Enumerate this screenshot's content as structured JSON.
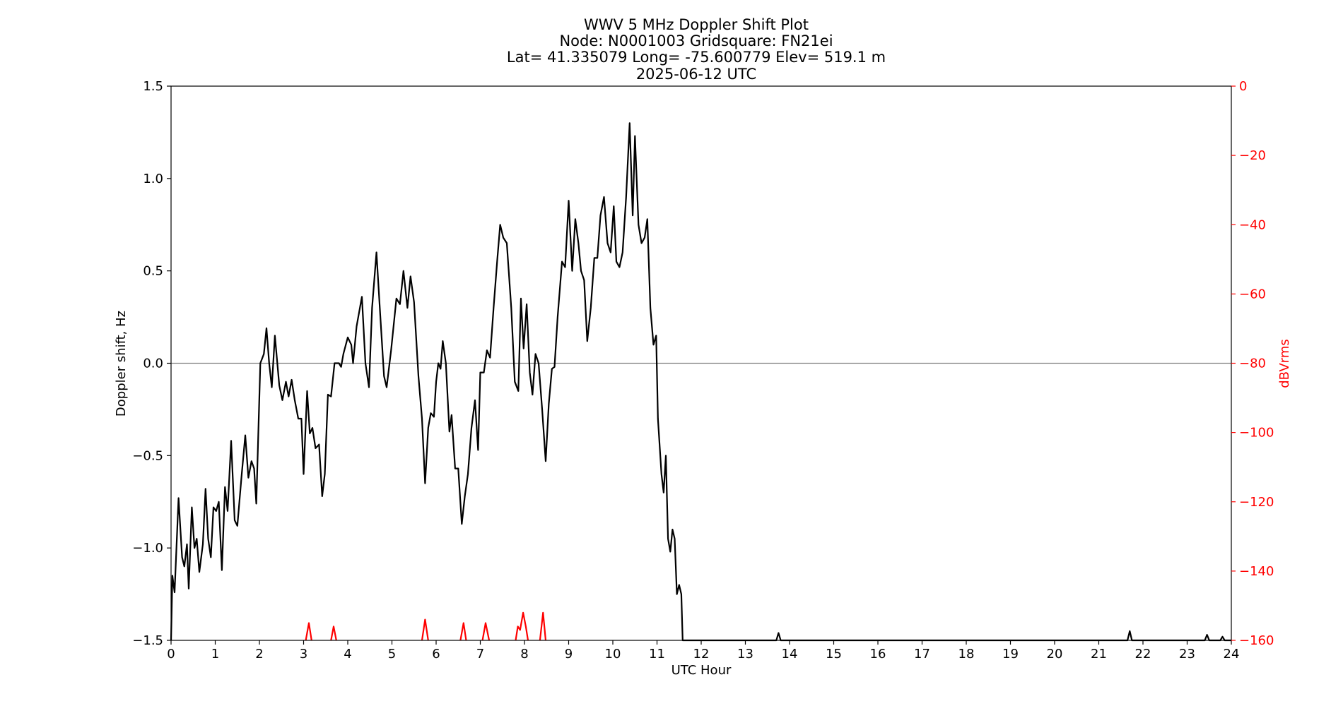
{
  "chart_data": {
    "type": "line",
    "title_lines": [
      "WWV 5 MHz Doppler Shift Plot",
      "Node:  N0001003     Gridsquare:  FN21ei",
      "Lat= 41.335079    Long= -75.600779    Elev= 519.1 m",
      "2025-06-12  UTC"
    ],
    "xlabel": "UTC Hour",
    "ylabel": "Doppler shift, Hz",
    "y2label": "dBVrms",
    "xlim": [
      0,
      24
    ],
    "ylim": [
      -1.5,
      1.5
    ],
    "y2lim": [
      -160,
      0
    ],
    "x_ticks": [
      "0",
      "1",
      "2",
      "3",
      "4",
      "5",
      "6",
      "7",
      "8",
      "9",
      "10",
      "11",
      "12",
      "13",
      "14",
      "15",
      "16",
      "17",
      "18",
      "19",
      "20",
      "21",
      "22",
      "23",
      "24"
    ],
    "y_ticks": [
      "−1.5",
      "−1.0",
      "−0.5",
      "0.0",
      "0.5",
      "1.0",
      "1.5"
    ],
    "y2_ticks": [
      "0",
      "−20",
      "−40",
      "−60",
      "−80",
      "−100",
      "−120",
      "−140",
      "−160"
    ],
    "zero_line": 0,
    "colors": {
      "doppler": "#000000",
      "power": "#ff0000",
      "zero": "#808080",
      "right_axis": "#ff0000"
    },
    "series": [
      {
        "axis": "left",
        "color": "#000000",
        "points": [
          [
            0.0,
            -1.5
          ],
          [
            0.03,
            -1.15
          ],
          [
            0.08,
            -1.24
          ],
          [
            0.17,
            -0.73
          ],
          [
            0.25,
            -1.05
          ],
          [
            0.3,
            -1.1
          ],
          [
            0.36,
            -0.98
          ],
          [
            0.4,
            -1.22
          ],
          [
            0.47,
            -0.78
          ],
          [
            0.53,
            -1.0
          ],
          [
            0.58,
            -0.95
          ],
          [
            0.64,
            -1.13
          ],
          [
            0.72,
            -0.98
          ],
          [
            0.78,
            -0.68
          ],
          [
            0.84,
            -0.95
          ],
          [
            0.9,
            -1.05
          ],
          [
            0.96,
            -0.78
          ],
          [
            1.02,
            -0.8
          ],
          [
            1.08,
            -0.75
          ],
          [
            1.15,
            -1.12
          ],
          [
            1.22,
            -0.67
          ],
          [
            1.28,
            -0.8
          ],
          [
            1.36,
            -0.42
          ],
          [
            1.44,
            -0.85
          ],
          [
            1.5,
            -0.88
          ],
          [
            1.6,
            -0.6
          ],
          [
            1.68,
            -0.39
          ],
          [
            1.75,
            -0.62
          ],
          [
            1.82,
            -0.53
          ],
          [
            1.88,
            -0.57
          ],
          [
            1.93,
            -0.76
          ],
          [
            2.02,
            0.0
          ],
          [
            2.1,
            0.05
          ],
          [
            2.16,
            0.19
          ],
          [
            2.22,
            0.0
          ],
          [
            2.28,
            -0.13
          ],
          [
            2.35,
            0.15
          ],
          [
            2.45,
            -0.12
          ],
          [
            2.52,
            -0.2
          ],
          [
            2.6,
            -0.1
          ],
          [
            2.66,
            -0.18
          ],
          [
            2.73,
            -0.09
          ],
          [
            2.8,
            -0.2
          ],
          [
            2.88,
            -0.3
          ],
          [
            2.95,
            -0.3
          ],
          [
            3.0,
            -0.6
          ],
          [
            3.08,
            -0.15
          ],
          [
            3.14,
            -0.38
          ],
          [
            3.2,
            -0.35
          ],
          [
            3.27,
            -0.46
          ],
          [
            3.35,
            -0.44
          ],
          [
            3.42,
            -0.72
          ],
          [
            3.48,
            -0.6
          ],
          [
            3.55,
            -0.17
          ],
          [
            3.62,
            -0.18
          ],
          [
            3.7,
            0.0
          ],
          [
            3.8,
            0.0
          ],
          [
            3.85,
            -0.02
          ],
          [
            3.9,
            0.05
          ],
          [
            4.0,
            0.14
          ],
          [
            4.08,
            0.1
          ],
          [
            4.12,
            0.0
          ],
          [
            4.2,
            0.2
          ],
          [
            4.32,
            0.36
          ],
          [
            4.4,
            0.0
          ],
          [
            4.48,
            -0.13
          ],
          [
            4.55,
            0.3
          ],
          [
            4.65,
            0.6
          ],
          [
            4.72,
            0.32
          ],
          [
            4.82,
            -0.07
          ],
          [
            4.88,
            -0.13
          ],
          [
            4.98,
            0.07
          ],
          [
            5.1,
            0.35
          ],
          [
            5.18,
            0.32
          ],
          [
            5.26,
            0.5
          ],
          [
            5.35,
            0.3
          ],
          [
            5.42,
            0.47
          ],
          [
            5.5,
            0.33
          ],
          [
            5.6,
            -0.07
          ],
          [
            5.68,
            -0.3
          ],
          [
            5.75,
            -0.65
          ],
          [
            5.82,
            -0.35
          ],
          [
            5.88,
            -0.27
          ],
          [
            5.95,
            -0.29
          ],
          [
            6.0,
            -0.1
          ],
          [
            6.05,
            0.0
          ],
          [
            6.1,
            -0.03
          ],
          [
            6.15,
            0.12
          ],
          [
            6.22,
            0.0
          ],
          [
            6.3,
            -0.37
          ],
          [
            6.35,
            -0.28
          ],
          [
            6.43,
            -0.57
          ],
          [
            6.5,
            -0.57
          ],
          [
            6.58,
            -0.87
          ],
          [
            6.65,
            -0.72
          ],
          [
            6.72,
            -0.6
          ],
          [
            6.8,
            -0.35
          ],
          [
            6.88,
            -0.2
          ],
          [
            6.95,
            -0.47
          ],
          [
            7.0,
            -0.05
          ],
          [
            7.08,
            -0.05
          ],
          [
            7.15,
            0.07
          ],
          [
            7.22,
            0.03
          ],
          [
            7.3,
            0.3
          ],
          [
            7.38,
            0.55
          ],
          [
            7.45,
            0.75
          ],
          [
            7.52,
            0.68
          ],
          [
            7.6,
            0.65
          ],
          [
            7.7,
            0.3
          ],
          [
            7.78,
            -0.1
          ],
          [
            7.86,
            -0.15
          ],
          [
            7.92,
            0.35
          ],
          [
            7.98,
            0.08
          ],
          [
            8.05,
            0.32
          ],
          [
            8.12,
            -0.05
          ],
          [
            8.18,
            -0.17
          ],
          [
            8.25,
            0.05
          ],
          [
            8.32,
            0.0
          ],
          [
            8.4,
            -0.25
          ],
          [
            8.48,
            -0.53
          ],
          [
            8.55,
            -0.22
          ],
          [
            8.62,
            -0.03
          ],
          [
            8.68,
            -0.02
          ],
          [
            8.75,
            0.25
          ],
          [
            8.85,
            0.55
          ],
          [
            8.92,
            0.52
          ],
          [
            9.0,
            0.88
          ],
          [
            9.08,
            0.5
          ],
          [
            9.15,
            0.78
          ],
          [
            9.22,
            0.65
          ],
          [
            9.28,
            0.5
          ],
          [
            9.35,
            0.45
          ],
          [
            9.42,
            0.12
          ],
          [
            9.5,
            0.3
          ],
          [
            9.58,
            0.57
          ],
          [
            9.65,
            0.57
          ],
          [
            9.72,
            0.8
          ],
          [
            9.8,
            0.9
          ],
          [
            9.88,
            0.65
          ],
          [
            9.95,
            0.6
          ],
          [
            10.02,
            0.85
          ],
          [
            10.08,
            0.55
          ],
          [
            10.15,
            0.52
          ],
          [
            10.22,
            0.6
          ],
          [
            10.3,
            0.9
          ],
          [
            10.38,
            1.3
          ],
          [
            10.45,
            0.8
          ],
          [
            10.5,
            1.23
          ],
          [
            10.58,
            0.75
          ],
          [
            10.65,
            0.65
          ],
          [
            10.72,
            0.68
          ],
          [
            10.78,
            0.78
          ],
          [
            10.85,
            0.3
          ],
          [
            10.92,
            0.1
          ],
          [
            10.98,
            0.15
          ],
          [
            11.02,
            -0.3
          ],
          [
            11.1,
            -0.6
          ],
          [
            11.15,
            -0.7
          ],
          [
            11.2,
            -0.5
          ],
          [
            11.25,
            -0.95
          ],
          [
            11.3,
            -1.02
          ],
          [
            11.35,
            -0.9
          ],
          [
            11.4,
            -0.95
          ],
          [
            11.45,
            -1.25
          ],
          [
            11.5,
            -1.2
          ],
          [
            11.55,
            -1.25
          ],
          [
            11.58,
            -1.5
          ],
          [
            13.7,
            -1.5
          ],
          [
            13.75,
            -1.46
          ],
          [
            13.8,
            -1.5
          ],
          [
            21.65,
            -1.5
          ],
          [
            21.7,
            -1.45
          ],
          [
            21.75,
            -1.5
          ],
          [
            23.4,
            -1.5
          ],
          [
            23.45,
            -1.47
          ],
          [
            23.5,
            -1.5
          ],
          [
            23.75,
            -1.5
          ],
          [
            23.8,
            -1.48
          ],
          [
            23.85,
            -1.5
          ],
          [
            24.0,
            -1.5
          ]
        ]
      },
      {
        "axis": "right",
        "color": "#ff0000",
        "segments": [
          [
            [
              3.05,
              -160
            ],
            [
              3.12,
              -155
            ],
            [
              3.18,
              -160
            ]
          ],
          [
            [
              3.62,
              -160
            ],
            [
              3.68,
              -156
            ],
            [
              3.74,
              -160
            ]
          ],
          [
            [
              5.68,
              -160
            ],
            [
              5.75,
              -154
            ],
            [
              5.82,
              -160
            ]
          ],
          [
            [
              6.55,
              -160
            ],
            [
              6.62,
              -155
            ],
            [
              6.68,
              -160
            ]
          ],
          [
            [
              7.05,
              -160
            ],
            [
              7.12,
              -155
            ],
            [
              7.2,
              -160
            ]
          ],
          [
            [
              7.8,
              -160
            ],
            [
              7.85,
              -156
            ],
            [
              7.9,
              -157
            ],
            [
              7.97,
              -152
            ],
            [
              8.03,
              -156
            ],
            [
              8.08,
              -160
            ]
          ],
          [
            [
              8.35,
              -160
            ],
            [
              8.42,
              -152
            ],
            [
              8.48,
              -160
            ]
          ]
        ]
      }
    ]
  }
}
